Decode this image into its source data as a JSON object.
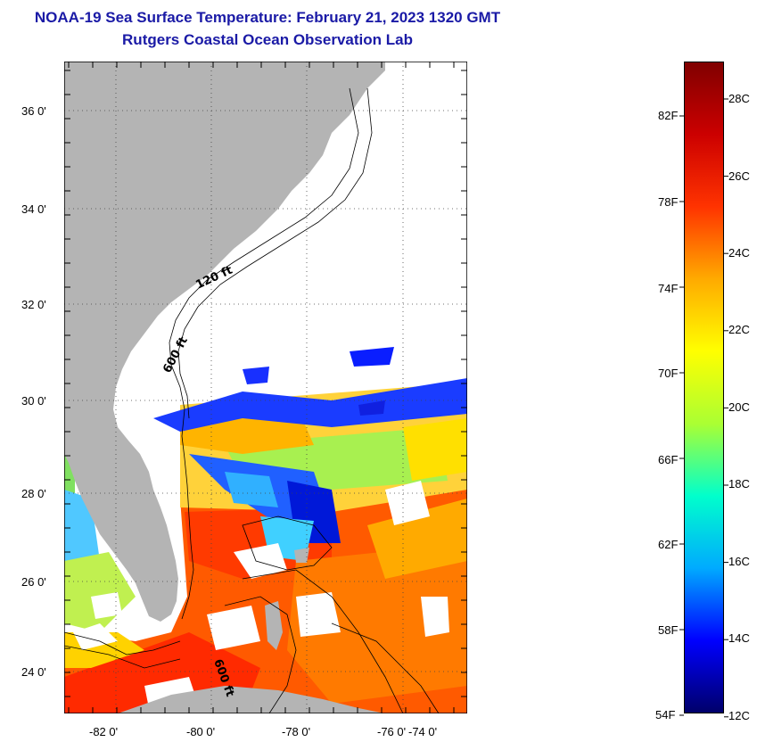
{
  "title": {
    "line1": "NOAA-19 Sea Surface Temperature:  February 21, 2023 1320 GMT",
    "line2": "Rutgers Coastal Ocean Observation Lab"
  },
  "map": {
    "lat_labels": [
      "36 0'",
      "34 0'",
      "32 0'",
      "30 0'",
      "28 0'",
      "26 0'",
      "24 0'"
    ],
    "lon_labels": [
      "-82 0'",
      "-80 0'",
      "-78 0'",
      "-76 0'",
      "-74 0'"
    ],
    "contour_labels": [
      "120 ft",
      "600 ft",
      "600 ft"
    ],
    "land_color": "#b4b4b4",
    "cloud_color": "#ffffff"
  },
  "colorbar": {
    "f_labels": [
      "82F",
      "78F",
      "74F",
      "70F",
      "66F",
      "62F",
      "58F",
      "54F"
    ],
    "c_labels": [
      "28C",
      "26C",
      "24C",
      "22C",
      "20C",
      "18C",
      "16C",
      "14C",
      "12C"
    ],
    "colors": [
      "#00006a",
      "#0000ff",
      "#00aaff",
      "#00ffcc",
      "#aaff33",
      "#ffff00",
      "#ffaa00",
      "#ff3300",
      "#cc0000",
      "#800000"
    ]
  }
}
